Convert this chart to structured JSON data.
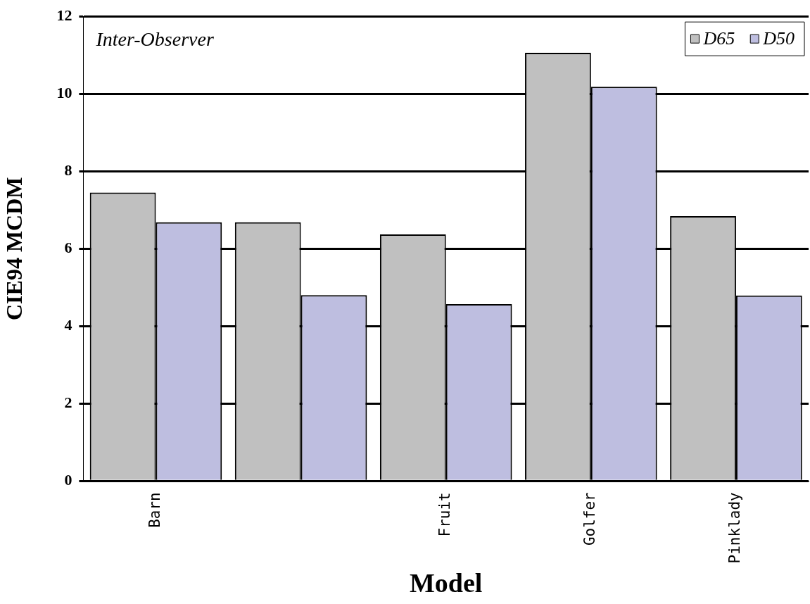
{
  "chart_data": {
    "type": "bar",
    "xlabel": "Model",
    "ylabel": "CIE94 MCDM",
    "annotations": [
      "Inter-Observer"
    ],
    "categories": [
      "Barn",
      null,
      "Fruit",
      "Golfer",
      "Pinklady"
    ],
    "series": [
      {
        "name": "D65",
        "color": "#c0c0c0",
        "values": [
          7.45,
          6.68,
          6.37,
          11.06,
          6.84
        ]
      },
      {
        "name": "D50",
        "color": "#bebee0",
        "values": [
          6.68,
          4.8,
          4.57,
          10.18,
          4.79
        ]
      }
    ],
    "ylim": [
      0,
      12
    ],
    "yticks": [
      0,
      2,
      4,
      6,
      8,
      10,
      12
    ],
    "grid": "y",
    "legend": "top right"
  }
}
